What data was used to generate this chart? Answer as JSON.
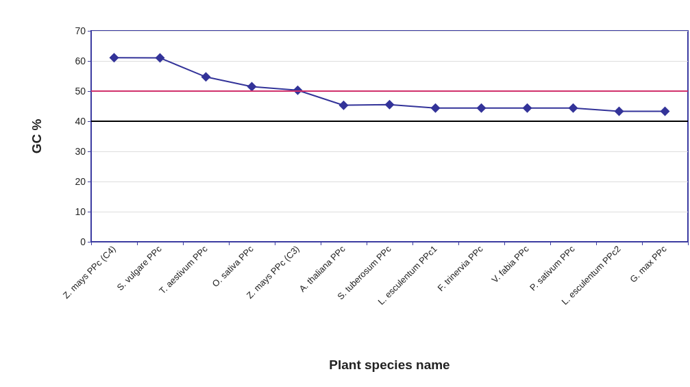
{
  "chart_data": {
    "type": "line",
    "xlabel": "Plant species name",
    "ylabel": "GC %",
    "categories": [
      "Z. mays PPc (C4)",
      "S. vulgare PPc",
      "T. aestivum PPc",
      "O. sativa PPc",
      "Z. mays PPc (C3)",
      "A. thaliana PPc",
      "S. tuberosum PPc",
      "L. esculentum PPc1",
      "F. trinervia PPc",
      "V. fabia PPc",
      "P. sativum PPc",
      "L. esculentum PPc2",
      "G. max PPc"
    ],
    "series": [
      {
        "color": "#333399",
        "values": [
          61.1,
          61,
          54.7,
          51.5,
          50.3,
          45.3,
          45.5,
          44.4,
          44.4,
          44.4,
          44.4,
          43.3,
          43.3
        ]
      }
    ],
    "ylim": [
      0,
      70
    ],
    "yticks": [
      0,
      10,
      20,
      30,
      40,
      50,
      60,
      70
    ],
    "grid": "y",
    "marker": "diamond",
    "line_style": "solid",
    "ref_lines": [
      {
        "axis": "y",
        "value": 50,
        "color": "#d0306a"
      },
      {
        "axis": "y",
        "value": 40,
        "color": "#000000"
      }
    ]
  }
}
